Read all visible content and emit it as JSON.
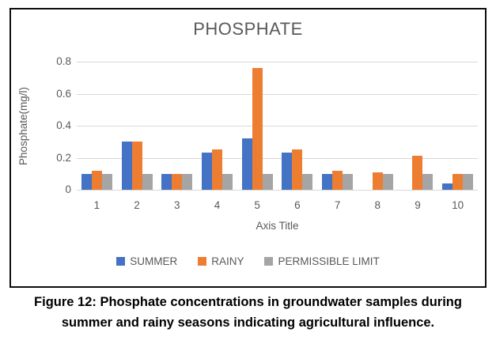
{
  "figure": {
    "caption_line1": "Figure 12: Phosphate concentrations in groundwater samples during",
    "caption_line2": "summer and rainy seasons indicating agricultural influence."
  },
  "chart_data": {
    "type": "bar",
    "title": "PHOSPHATE",
    "xlabel": "Axis Title",
    "ylabel": "Phosphate(mg/l)",
    "categories": [
      "1",
      "2",
      "3",
      "4",
      "5",
      "6",
      "7",
      "8",
      "9",
      "10"
    ],
    "series": [
      {
        "name": "SUMMER",
        "color": "#4472C4",
        "values": [
          0.1,
          0.3,
          0.1,
          0.23,
          0.32,
          0.23,
          0.1,
          0,
          0,
          0.04
        ]
      },
      {
        "name": "RAINY",
        "color": "#ED7D31",
        "values": [
          0.12,
          0.3,
          0.1,
          0.25,
          0.76,
          0.25,
          0.12,
          0.11,
          0.21,
          0.1
        ]
      },
      {
        "name": "PERMISSIBLE LIMIT",
        "color": "#A5A5A5",
        "values": [
          0.1,
          0.1,
          0.1,
          0.1,
          0.1,
          0.1,
          0.1,
          0.1,
          0.1,
          0.1
        ]
      }
    ],
    "ylim": [
      0,
      0.8
    ],
    "yticks": [
      "0",
      "0.2",
      "0.4",
      "0.6",
      "0.8"
    ],
    "ytick_values": [
      0,
      0.2,
      0.4,
      0.6,
      0.8
    ],
    "grid": true,
    "legend_position": "bottom",
    "colors": {
      "text": "#595959",
      "gridline": "#D9D9D9",
      "box_border": "#0D0D0D"
    }
  }
}
